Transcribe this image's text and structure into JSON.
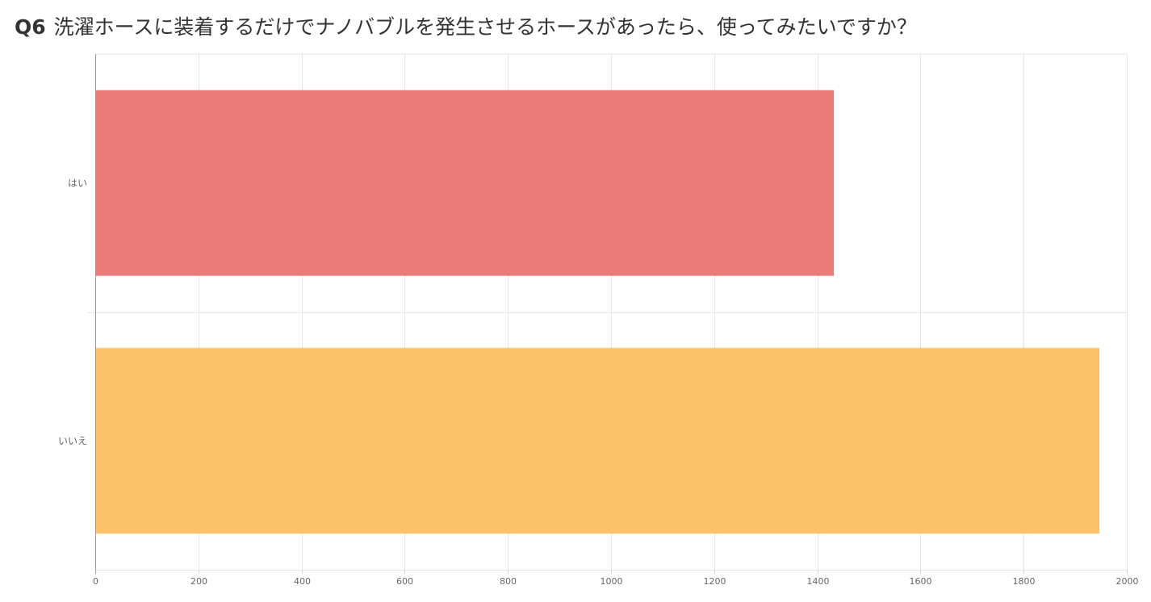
{
  "question": {
    "number": "Q6",
    "text": "洗濯ホースに装着するだけでナノバブルを発生させるホースがあったら、使ってみたいですか？"
  },
  "chart_data": {
    "type": "bar",
    "orientation": "horizontal",
    "categories": [
      "はい",
      "いいえ"
    ],
    "values": [
      1432,
      1947
    ],
    "colors": [
      "#eb7b7b",
      "#fbc26a"
    ],
    "xlim": [
      0,
      2000
    ],
    "xticks": [
      0,
      200,
      400,
      600,
      800,
      1000,
      1200,
      1400,
      1600,
      1800,
      2000
    ],
    "grid": true
  }
}
